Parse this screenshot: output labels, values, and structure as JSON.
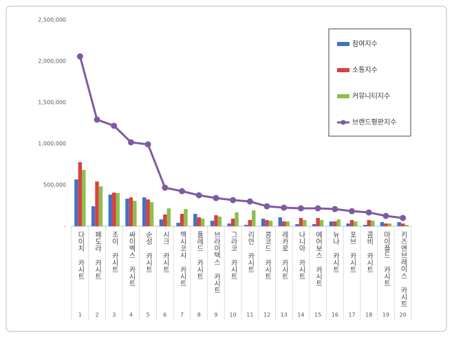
{
  "chart_data": {
    "type": "bar",
    "categories": [
      "다이치 카시트",
      "페도라 카시트",
      "조이 카시트",
      "싸이벡스 카시트",
      "순성 카시트",
      "시크 카시트",
      "맥시코시 카시트",
      "폴레드 카시트",
      "브라이택스 카시트",
      "그라코 카시트",
      "리안 카시트",
      "콩코드 카시트",
      "레카로 카시트",
      "나니아 카시트",
      "에어보스 카시트",
      "뉴나 카시트",
      "포브 카시트",
      "콤비 카시트",
      "마이플드 카시트",
      "키즈엔브레이스 카시트"
    ],
    "category_numbers": [
      1,
      2,
      3,
      4,
      5,
      6,
      7,
      8,
      9,
      10,
      11,
      12,
      13,
      14,
      15,
      16,
      17,
      18,
      19,
      20
    ],
    "series": [
      {
        "name": "참여지수",
        "color": "#4472c4",
        "values": [
          567000,
          242000,
          383000,
          333000,
          350000,
          83000,
          42000,
          150000,
          67000,
          33000,
          17000,
          92000,
          108000,
          25000,
          25000,
          58000,
          33000,
          17000,
          50000,
          50000
        ]
      },
      {
        "name": "소통지수",
        "color": "#d9413f",
        "values": [
          775000,
          542000,
          408000,
          350000,
          325000,
          142000,
          150000,
          108000,
          133000,
          92000,
          75000,
          75000,
          58000,
          100000,
          100000,
          58000,
          75000,
          75000,
          33000,
          33000
        ]
      },
      {
        "name": "커뮤니티지수",
        "color": "#8cbf4e",
        "values": [
          683000,
          483000,
          400000,
          308000,
          292000,
          217000,
          208000,
          92000,
          117000,
          167000,
          192000,
          67000,
          58000,
          75000,
          75000,
          83000,
          58000,
          67000,
          33000,
          17000
        ]
      },
      {
        "name": "브랜드평판지수",
        "type": "line",
        "color": "#7f5aa2",
        "values": [
          2058000,
          1292000,
          1217000,
          1017000,
          992000,
          467000,
          425000,
          375000,
          342000,
          317000,
          300000,
          242000,
          225000,
          217000,
          217000,
          208000,
          183000,
          167000,
          125000,
          100000
        ]
      }
    ],
    "ylim": [
      0,
      2500000
    ],
    "yticks": [
      {
        "value": 0,
        "label": "-"
      },
      {
        "value": 500000,
        "label": "500,000"
      },
      {
        "value": 1000000,
        "label": "1,000,000"
      },
      {
        "value": 1500000,
        "label": "1,500,000"
      },
      {
        "value": 2000000,
        "label": "2,000,000"
      },
      {
        "value": 2500000,
        "label": "2,500,000"
      }
    ],
    "legend": "top-right"
  }
}
